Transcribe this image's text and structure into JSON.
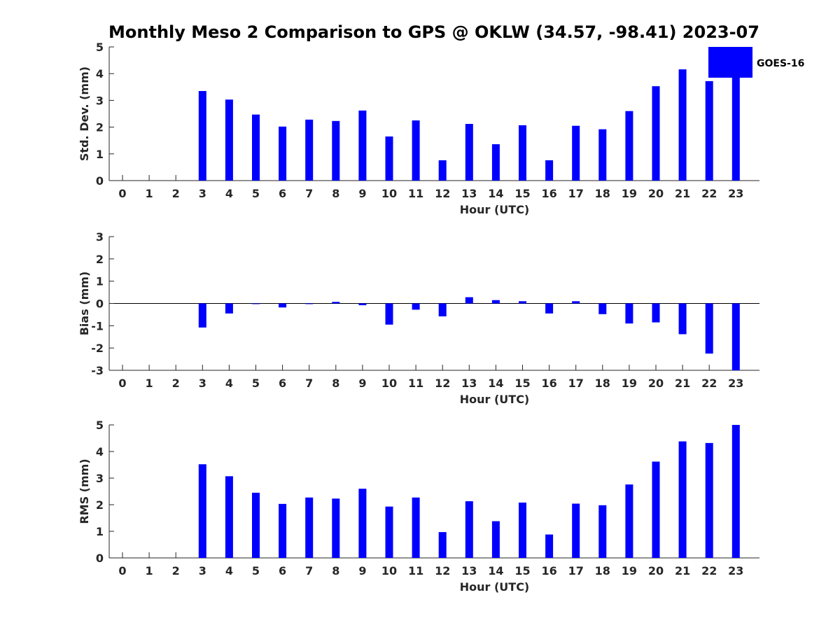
{
  "title": "Monthly Meso 2 Comparison to GPS @ OKLW (34.57, -98.41) 2023-07",
  "legend": {
    "label": "GOES-16",
    "color": "#0000ff"
  },
  "chart_data": [
    {
      "type": "bar",
      "panel": "std",
      "ylabel": "Std. Dev. (mm)",
      "xlabel": "Hour (UTC)",
      "ylim": [
        0,
        5
      ],
      "yticks": [
        0,
        1,
        2,
        3,
        4,
        5
      ],
      "categories": [
        "0",
        "1",
        "2",
        "3",
        "4",
        "5",
        "6",
        "7",
        "8",
        "9",
        "10",
        "11",
        "12",
        "13",
        "14",
        "15",
        "16",
        "17",
        "18",
        "19",
        "20",
        "21",
        "22",
        "23"
      ],
      "series": [
        {
          "name": "GOES-16",
          "values": [
            null,
            null,
            null,
            3.35,
            3.03,
            2.47,
            2.02,
            2.28,
            2.23,
            2.62,
            1.65,
            2.25,
            0.76,
            2.12,
            1.36,
            2.07,
            0.76,
            2.05,
            1.92,
            2.6,
            3.53,
            4.16,
            3.72,
            3.9
          ]
        }
      ]
    },
    {
      "type": "bar",
      "panel": "bias",
      "ylabel": "Bias (mm)",
      "xlabel": "Hour (UTC)",
      "ylim": [
        -3,
        3
      ],
      "yticks": [
        -3,
        -2,
        -1,
        0,
        1,
        2,
        3
      ],
      "categories": [
        "0",
        "1",
        "2",
        "3",
        "4",
        "5",
        "6",
        "7",
        "8",
        "9",
        "10",
        "11",
        "12",
        "13",
        "14",
        "15",
        "16",
        "17",
        "18",
        "19",
        "20",
        "21",
        "22",
        "23"
      ],
      "series": [
        {
          "name": "GOES-16",
          "values": [
            null,
            null,
            null,
            -1.08,
            -0.45,
            -0.03,
            -0.18,
            -0.03,
            0.07,
            -0.08,
            -0.95,
            -0.28,
            -0.58,
            0.28,
            0.15,
            0.1,
            -0.45,
            0.1,
            -0.48,
            -0.9,
            -0.85,
            -1.38,
            -2.25,
            -3.0
          ]
        }
      ]
    },
    {
      "type": "bar",
      "panel": "rms",
      "ylabel": "RMS (mm)",
      "xlabel": "Hour (UTC)",
      "ylim": [
        0,
        5
      ],
      "yticks": [
        0,
        1,
        2,
        3,
        4,
        5
      ],
      "categories": [
        "0",
        "1",
        "2",
        "3",
        "4",
        "5",
        "6",
        "7",
        "8",
        "9",
        "10",
        "11",
        "12",
        "13",
        "14",
        "15",
        "16",
        "17",
        "18",
        "19",
        "20",
        "21",
        "22",
        "23"
      ],
      "series": [
        {
          "name": "GOES-16",
          "values": [
            null,
            null,
            null,
            3.52,
            3.07,
            2.45,
            2.03,
            2.27,
            2.23,
            2.6,
            1.93,
            2.27,
            0.97,
            2.13,
            1.38,
            2.08,
            0.88,
            2.04,
            1.98,
            2.76,
            3.62,
            4.38,
            4.32,
            5.0
          ]
        }
      ]
    }
  ]
}
